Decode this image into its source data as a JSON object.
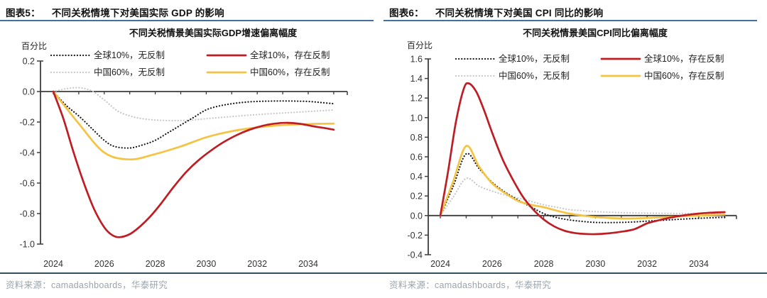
{
  "colors": {
    "header_underline": "#456f9e",
    "bottom_rule": "#35505c",
    "source_text": "#9aa4ab",
    "axis": "#3c3c3c",
    "tick_label": "#333333",
    "title_text": "#111111",
    "legend_text": "#222222",
    "series_black": "#1a1a1a",
    "series_gray": "#c8c8cb",
    "series_red": "#be1e23",
    "series_yellow": "#f5c342"
  },
  "figures": [
    {
      "label": "图表5：",
      "heading": "不同关税情境下对美国实际 GDP 的影响",
      "source": "资料来源：camadashboards，华泰研究"
    },
    {
      "label": "图表6：",
      "heading": "不同关税情境下对美国 CPI 同比的影响",
      "source": "资料来源：camadashboards，华泰研究"
    }
  ],
  "chart_data": [
    {
      "type": "line",
      "title": "不同关税情景美国实际GDP增速偏离幅度",
      "ylabel": "百分比",
      "xlabel": "",
      "ylim": [
        -1.0,
        0.2
      ],
      "yticks": [
        0.2,
        0.0,
        -0.2,
        -0.4,
        -0.6,
        -0.8,
        -1.0
      ],
      "xlim": [
        2023.5,
        2035.5
      ],
      "xticks": [
        2024,
        2026,
        2028,
        2030,
        2032,
        2034
      ],
      "xticks_minor": [
        2024,
        2025,
        2026,
        2027,
        2028,
        2029,
        2030,
        2031,
        2032,
        2033,
        2034,
        2035
      ],
      "grid": false,
      "legend_position": "top",
      "series": [
        {
          "key": "global10-no-retaliation",
          "name": "全球10%，无反制",
          "style": "dotted",
          "color": "#1a1a1a",
          "x": [
            2024,
            2024.5,
            2025,
            2025.5,
            2026,
            2026.4,
            2027,
            2027.5,
            2028,
            2028.5,
            2029,
            2029.5,
            2030,
            2030.5,
            2031,
            2031.5,
            2032,
            2032.5,
            2033,
            2033.5,
            2034,
            2034.5,
            2035
          ],
          "y": [
            0,
            -0.09,
            -0.16,
            -0.24,
            -0.32,
            -0.36,
            -0.37,
            -0.35,
            -0.32,
            -0.27,
            -0.22,
            -0.17,
            -0.12,
            -0.095,
            -0.08,
            -0.07,
            -0.065,
            -0.063,
            -0.062,
            -0.063,
            -0.065,
            -0.072,
            -0.08
          ]
        },
        {
          "key": "china60-no-retaliation",
          "name": "中国60%，无反制",
          "style": "dotted",
          "color": "#c8c8cb",
          "x": [
            2024,
            2024.5,
            2025,
            2025.5,
            2026,
            2026.5,
            2027,
            2027.5,
            2028,
            2028.5,
            2029,
            2029.5,
            2030,
            2031,
            2032,
            2033,
            2034,
            2035
          ],
          "y": [
            0,
            0.018,
            0.025,
            0.005,
            -0.055,
            -0.125,
            -0.16,
            -0.178,
            -0.187,
            -0.19,
            -0.19,
            -0.186,
            -0.178,
            -0.164,
            -0.151,
            -0.141,
            -0.131,
            -0.121
          ]
        },
        {
          "key": "global10-with-retaliation",
          "name": "全球10%，存在反制",
          "style": "solid",
          "color": "#be1e23",
          "x": [
            2024,
            2024.4,
            2024.8,
            2025.2,
            2025.6,
            2026,
            2026.3,
            2026.6,
            2027,
            2027.4,
            2027.8,
            2028.2,
            2028.7,
            2029.2,
            2029.7,
            2030.2,
            2030.7,
            2031.2,
            2031.7,
            2032.2,
            2032.7,
            2033.2,
            2033.7,
            2034.2,
            2034.6,
            2035
          ],
          "y": [
            0,
            -0.18,
            -0.4,
            -0.6,
            -0.77,
            -0.89,
            -0.94,
            -0.955,
            -0.935,
            -0.885,
            -0.82,
            -0.74,
            -0.63,
            -0.53,
            -0.45,
            -0.385,
            -0.33,
            -0.285,
            -0.25,
            -0.225,
            -0.21,
            -0.205,
            -0.212,
            -0.228,
            -0.238,
            -0.25
          ]
        },
        {
          "key": "china60-with-retaliation",
          "name": "中国60%，存在反制",
          "style": "solid",
          "color": "#f5c342",
          "x": [
            2024,
            2025,
            2026,
            2027,
            2028,
            2029,
            2030,
            2031,
            2032,
            2033,
            2034,
            2035
          ],
          "y": [
            0,
            -0.21,
            -0.4,
            -0.445,
            -0.41,
            -0.36,
            -0.3,
            -0.26,
            -0.235,
            -0.22,
            -0.213,
            -0.21
          ]
        }
      ]
    },
    {
      "type": "line",
      "title": "不同关税情景美国CPI同比偏离幅度",
      "ylabel": "百分比",
      "xlabel": "",
      "ylim": [
        -0.4,
        1.6
      ],
      "yticks": [
        1.6,
        1.4,
        1.2,
        1.0,
        0.8,
        0.6,
        0.4,
        0.2,
        0.0,
        -0.2,
        -0.4
      ],
      "xlim": [
        2023.5,
        2035.5
      ],
      "xticks": [
        2024,
        2026,
        2028,
        2030,
        2032,
        2034
      ],
      "xticks_minor": [
        2024,
        2025,
        2026,
        2027,
        2028,
        2029,
        2030,
        2031,
        2032,
        2033,
        2034,
        2035
      ],
      "grid": false,
      "legend_position": "top",
      "series": [
        {
          "key": "global10-no-retaliation",
          "name": "全球10%，无反制",
          "style": "dotted",
          "color": "#1a1a1a",
          "x": [
            2024,
            2024.5,
            2025,
            2025.5,
            2026,
            2026.5,
            2027,
            2027.5,
            2028,
            2028.5,
            2029,
            2029.5,
            2030,
            2030.5,
            2031,
            2031.5,
            2032,
            2033,
            2034,
            2035
          ],
          "y": [
            0,
            0.3,
            0.63,
            0.48,
            0.34,
            0.24,
            0.16,
            0.09,
            0.02,
            -0.02,
            -0.045,
            -0.06,
            -0.07,
            -0.072,
            -0.07,
            -0.065,
            -0.057,
            -0.042,
            -0.028,
            -0.018
          ]
        },
        {
          "key": "china60-no-retaliation",
          "name": "中国60%，无反制",
          "style": "dotted",
          "color": "#c8c8cb",
          "x": [
            2024,
            2024.5,
            2025,
            2025.5,
            2026,
            2026.5,
            2027,
            2027.5,
            2028,
            2028.5,
            2029,
            2029.5,
            2030,
            2031,
            2032,
            2033,
            2034,
            2035
          ],
          "y": [
            0,
            0.19,
            0.38,
            0.3,
            0.25,
            0.21,
            0.18,
            0.145,
            0.11,
            0.085,
            0.06,
            0.05,
            0.04,
            0.03,
            0.025,
            0.022,
            0.02,
            0.02
          ]
        },
        {
          "key": "global10-with-retaliation",
          "name": "全球10%，存在反制",
          "style": "solid",
          "color": "#be1e23",
          "x": [
            2024,
            2024.3,
            2024.6,
            2024.9,
            2025.1,
            2025.4,
            2025.7,
            2026,
            2026.4,
            2026.8,
            2027.2,
            2027.6,
            2028,
            2028.4,
            2028.8,
            2029.2,
            2029.6,
            2030,
            2030.5,
            2031,
            2031.5,
            2032,
            2032.5,
            2033,
            2033.5,
            2034,
            2034.5,
            2035
          ],
          "y": [
            0,
            0.45,
            0.95,
            1.29,
            1.35,
            1.26,
            1.07,
            0.85,
            0.58,
            0.37,
            0.19,
            0.06,
            -0.04,
            -0.11,
            -0.155,
            -0.178,
            -0.188,
            -0.19,
            -0.182,
            -0.165,
            -0.14,
            -0.08,
            -0.045,
            -0.015,
            0.005,
            0.02,
            0.03,
            0.035
          ]
        },
        {
          "key": "china60-with-retaliation",
          "name": "中国60%，存在反制",
          "style": "solid",
          "color": "#f5c342",
          "x": [
            2024,
            2024.5,
            2025,
            2025.5,
            2026,
            2026.5,
            2027,
            2027.5,
            2028,
            2028.5,
            2029,
            2029.5,
            2030,
            2031,
            2032,
            2033,
            2034,
            2035
          ],
          "y": [
            0,
            0.35,
            0.71,
            0.5,
            0.33,
            0.23,
            0.15,
            0.11,
            0.085,
            0.05,
            0.02,
            0.0,
            -0.015,
            -0.03,
            -0.025,
            -0.012,
            0.0,
            0.01
          ]
        }
      ]
    }
  ]
}
